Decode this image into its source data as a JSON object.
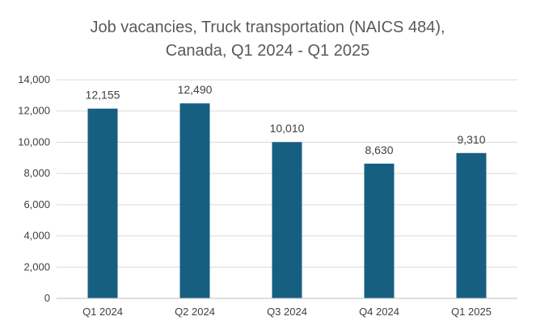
{
  "chart_data": {
    "type": "bar",
    "title_lines": [
      "Job vacancies, Truck transportation (NAICS 484),",
      "Canada, Q1 2024 - Q1 2025"
    ],
    "categories": [
      "Q1 2024",
      "Q2 2024",
      "Q3 2024",
      "Q4 2024",
      "Q1 2025"
    ],
    "values": [
      12155,
      12490,
      10010,
      8630,
      9310
    ],
    "data_labels": [
      "12,155",
      "12,490",
      "10,010",
      "8,630",
      "9,310"
    ],
    "y_ticks": [
      0,
      2000,
      4000,
      6000,
      8000,
      10000,
      12000,
      14000
    ],
    "y_tick_labels": [
      "0",
      "2,000",
      "4,000",
      "6,000",
      "8,000",
      "10,000",
      "12,000",
      "14,000"
    ],
    "ylim": [
      0,
      14000
    ],
    "grid": true,
    "legend": "none",
    "bar_color": "#175f80",
    "xlabel": "",
    "ylabel": ""
  }
}
